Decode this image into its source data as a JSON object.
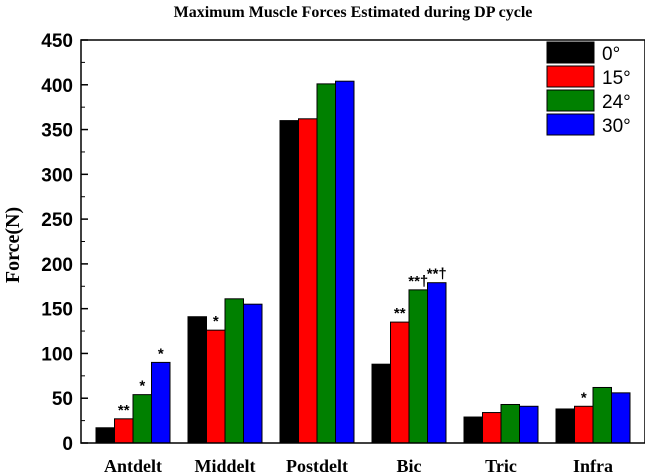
{
  "chart_data": {
    "type": "bar",
    "title": "Maximum Muscle Forces Estimated during DP cycle",
    "xlabel": "",
    "ylabel": "Force(N)",
    "ylim": [
      0,
      450
    ],
    "yticks": [
      0,
      50,
      100,
      150,
      200,
      250,
      300,
      350,
      400,
      450
    ],
    "categories": [
      "Antdelt",
      "Middelt",
      "Postdelt",
      "Bic",
      "Tric",
      "Infra"
    ],
    "series": [
      {
        "name": "0°",
        "color": "#000000",
        "values": [
          17,
          141,
          360,
          88,
          29,
          38
        ]
      },
      {
        "name": "15°",
        "color": "#ff0000",
        "values": [
          27,
          126,
          362,
          135,
          34,
          41
        ]
      },
      {
        "name": "24°",
        "color": "#008000",
        "values": [
          54,
          161,
          401,
          171,
          43,
          62
        ]
      },
      {
        "name": "30°",
        "color": "#0000ff",
        "values": [
          90,
          155,
          404,
          179,
          41,
          56
        ]
      }
    ],
    "annotations": [
      {
        "category": "Antdelt",
        "series": 1,
        "text": "**"
      },
      {
        "category": "Antdelt",
        "series": 2,
        "text": "*"
      },
      {
        "category": "Antdelt",
        "series": 3,
        "text": "*"
      },
      {
        "category": "Middelt",
        "series": 1,
        "text": "*"
      },
      {
        "category": "Bic",
        "series": 1,
        "text": "**"
      },
      {
        "category": "Bic",
        "series": 2,
        "text": "**†"
      },
      {
        "category": "Bic",
        "series": 3,
        "text": "**†"
      },
      {
        "category": "Infra",
        "series": 1,
        "text": "*"
      }
    ],
    "legend_position": "top-right",
    "grid": false
  }
}
